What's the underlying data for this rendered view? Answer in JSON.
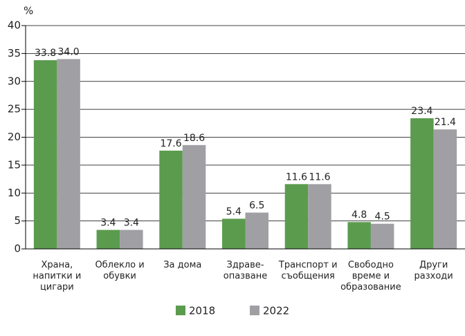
{
  "chart_data": {
    "type": "bar",
    "ylabel": "%",
    "categories": [
      "Храна,\nнапитки и\nцигари",
      "Облекло и\nобувки",
      "За дома",
      "Здраве-\nопазване",
      "Транспорт и\nсъобщения",
      "Свободно\nвреме и\nобразование",
      "Други\nразходи"
    ],
    "series": [
      {
        "name": "2018",
        "color": "#5b9b4e",
        "values": [
          33.8,
          3.4,
          17.6,
          5.4,
          11.6,
          4.8,
          23.4
        ],
        "value_labels": [
          "33.8",
          "3.4",
          "17.6",
          "5.4",
          "11.6",
          "4.8",
          "23.4"
        ]
      },
      {
        "name": "2022",
        "color": "#a0a0a4",
        "values": [
          34,
          3.4,
          18.6,
          6.5,
          11.6,
          4.5,
          21.4
        ],
        "value_labels": [
          "34.0",
          "3.4",
          "18.6",
          "6.5",
          "11.6",
          "4.5",
          "21.4"
        ]
      }
    ],
    "ylim": [
      0,
      40
    ],
    "yticks": [
      0,
      5,
      10,
      15,
      20,
      25,
      30,
      35,
      40
    ],
    "grid": true,
    "legend": "bottom"
  }
}
